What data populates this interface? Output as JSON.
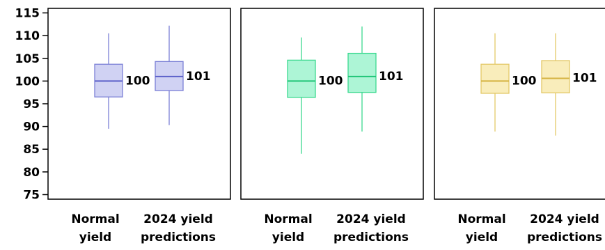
{
  "chart_data": [
    {
      "type": "box",
      "categories": [
        "Normal yield",
        "2024 yield predictions"
      ],
      "ylim": [
        74,
        116
      ],
      "yticks": [
        75,
        80,
        85,
        90,
        95,
        100,
        105,
        110,
        115
      ],
      "colors": {
        "fill": "#d0d2f3",
        "stroke": "#7b7fd6",
        "median": "#5b60c9"
      },
      "boxes": [
        {
          "min": 89.5,
          "q1": 96.5,
          "median": 100,
          "q3": 103.7,
          "max": 110.5,
          "label": "100"
        },
        {
          "min": 90.3,
          "q1": 97.9,
          "median": 101,
          "q3": 104.3,
          "max": 112.2,
          "label": "101"
        }
      ]
    },
    {
      "type": "box",
      "categories": [
        "Normal yield",
        "2024 yield predictions"
      ],
      "ylim": [
        74,
        116
      ],
      "yticks": [
        75,
        80,
        85,
        90,
        95,
        100,
        105,
        110,
        115
      ],
      "colors": {
        "fill": "#adf5d6",
        "stroke": "#3bd98f",
        "median": "#1fc577"
      },
      "boxes": [
        {
          "min": 84.0,
          "q1": 96.4,
          "median": 100,
          "q3": 104.6,
          "max": 109.6,
          "label": "100"
        },
        {
          "min": 88.9,
          "q1": 97.5,
          "median": 101,
          "q3": 106.1,
          "max": 112.0,
          "label": "101"
        }
      ]
    },
    {
      "type": "box",
      "categories": [
        "Normal yield",
        "2024 yield predictions"
      ],
      "ylim": [
        74,
        116
      ],
      "yticks": [
        75,
        80,
        85,
        90,
        95,
        100,
        105,
        110,
        115
      ],
      "colors": {
        "fill": "#f9edbb",
        "stroke": "#e3c867",
        "median": "#d5b240"
      },
      "boxes": [
        {
          "min": 88.9,
          "q1": 97.3,
          "median": 100,
          "q3": 103.7,
          "max": 110.5,
          "label": "100"
        },
        {
          "min": 88.0,
          "q1": 97.4,
          "median": 100.6,
          "q3": 104.5,
          "max": 110.5,
          "label": "101"
        }
      ]
    }
  ]
}
